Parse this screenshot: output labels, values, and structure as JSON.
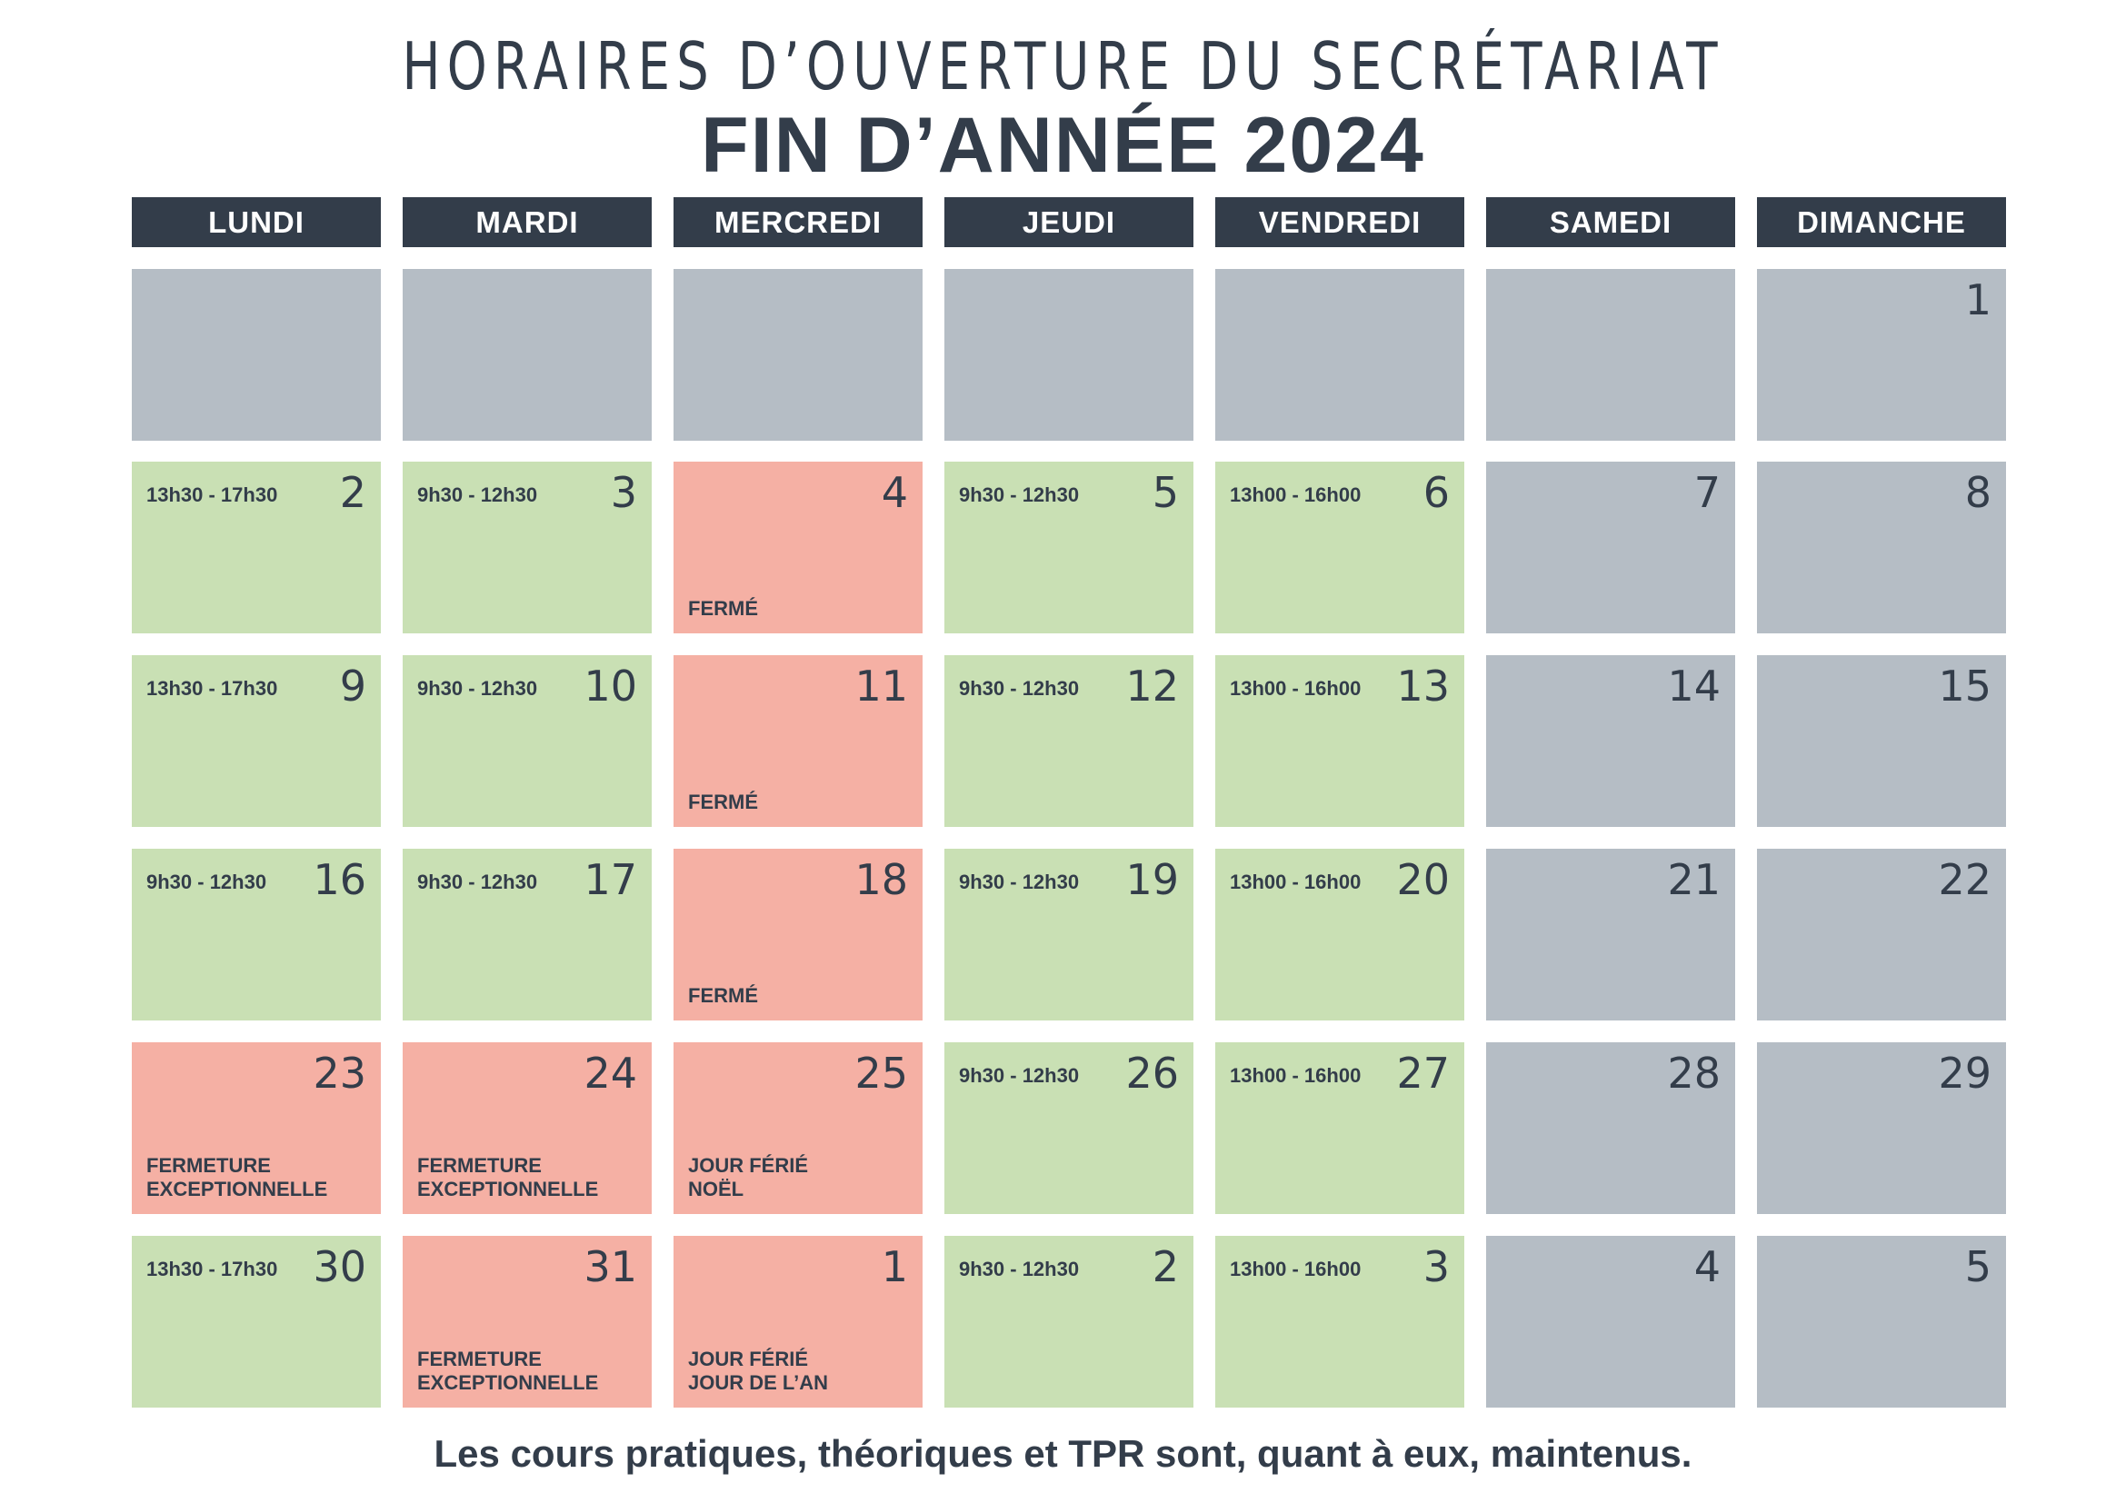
{
  "title": "HORAIRES D’OUVERTURE DU SECRÉTARIAT",
  "subtitle": "FIN D’ANNÉE 2024",
  "weekdays": [
    "LUNDI",
    "MARDI",
    "MERCREDI",
    "JEUDI",
    "VENDREDI",
    "SAMEDI",
    "DIMANCHE"
  ],
  "status_colors": {
    "open": "#c9e0b4",
    "closed": "#f5b0a4",
    "none": "#b5bdc5"
  },
  "weeks": [
    [
      {
        "day": "",
        "status": "none",
        "hours": "",
        "note": []
      },
      {
        "day": "",
        "status": "none",
        "hours": "",
        "note": []
      },
      {
        "day": "",
        "status": "none",
        "hours": "",
        "note": []
      },
      {
        "day": "",
        "status": "none",
        "hours": "",
        "note": []
      },
      {
        "day": "",
        "status": "none",
        "hours": "",
        "note": []
      },
      {
        "day": "",
        "status": "none",
        "hours": "",
        "note": []
      },
      {
        "day": "1",
        "status": "none",
        "hours": "",
        "note": []
      }
    ],
    [
      {
        "day": "2",
        "status": "open",
        "hours": "13h30 - 17h30",
        "note": []
      },
      {
        "day": "3",
        "status": "open",
        "hours": "9h30 - 12h30",
        "note": []
      },
      {
        "day": "4",
        "status": "closed",
        "hours": "",
        "note": [
          "FERMÉ"
        ]
      },
      {
        "day": "5",
        "status": "open",
        "hours": "9h30 - 12h30",
        "note": []
      },
      {
        "day": "6",
        "status": "open",
        "hours": "13h00 - 16h00",
        "note": []
      },
      {
        "day": "7",
        "status": "none",
        "hours": "",
        "note": []
      },
      {
        "day": "8",
        "status": "none",
        "hours": "",
        "note": []
      }
    ],
    [
      {
        "day": "9",
        "status": "open",
        "hours": "13h30 - 17h30",
        "note": []
      },
      {
        "day": "10",
        "status": "open",
        "hours": "9h30 - 12h30",
        "note": []
      },
      {
        "day": "11",
        "status": "closed",
        "hours": "",
        "note": [
          "FERMÉ"
        ]
      },
      {
        "day": "12",
        "status": "open",
        "hours": "9h30 - 12h30",
        "note": []
      },
      {
        "day": "13",
        "status": "open",
        "hours": "13h00 - 16h00",
        "note": []
      },
      {
        "day": "14",
        "status": "none",
        "hours": "",
        "note": []
      },
      {
        "day": "15",
        "status": "none",
        "hours": "",
        "note": []
      }
    ],
    [
      {
        "day": "16",
        "status": "open",
        "hours": "9h30 - 12h30",
        "note": []
      },
      {
        "day": "17",
        "status": "open",
        "hours": "9h30 - 12h30",
        "note": []
      },
      {
        "day": "18",
        "status": "closed",
        "hours": "",
        "note": [
          "FERMÉ"
        ]
      },
      {
        "day": "19",
        "status": "open",
        "hours": "9h30 - 12h30",
        "note": []
      },
      {
        "day": "20",
        "status": "open",
        "hours": "13h00 - 16h00",
        "note": []
      },
      {
        "day": "21",
        "status": "none",
        "hours": "",
        "note": []
      },
      {
        "day": "22",
        "status": "none",
        "hours": "",
        "note": []
      }
    ],
    [
      {
        "day": "23",
        "status": "closed",
        "hours": "",
        "note": [
          "FERMETURE",
          "EXCEPTIONNELLE"
        ]
      },
      {
        "day": "24",
        "status": "closed",
        "hours": "",
        "note": [
          "FERMETURE",
          "EXCEPTIONNELLE"
        ]
      },
      {
        "day": "25",
        "status": "closed",
        "hours": "",
        "note": [
          "JOUR FÉRIÉ",
          "NOËL"
        ]
      },
      {
        "day": "26",
        "status": "open",
        "hours": "9h30 - 12h30",
        "note": []
      },
      {
        "day": "27",
        "status": "open",
        "hours": "13h00 - 16h00",
        "note": []
      },
      {
        "day": "28",
        "status": "none",
        "hours": "",
        "note": []
      },
      {
        "day": "29",
        "status": "none",
        "hours": "",
        "note": []
      }
    ],
    [
      {
        "day": "30",
        "status": "open",
        "hours": "13h30 - 17h30",
        "note": []
      },
      {
        "day": "31",
        "status": "closed",
        "hours": "",
        "note": [
          "FERMETURE",
          "EXCEPTIONNELLE"
        ]
      },
      {
        "day": "1",
        "status": "closed",
        "hours": "",
        "note": [
          "JOUR FÉRIÉ",
          "JOUR DE L’AN"
        ]
      },
      {
        "day": "2",
        "status": "open",
        "hours": "9h30 - 12h30",
        "note": []
      },
      {
        "day": "3",
        "status": "open",
        "hours": "13h00 - 16h00",
        "note": []
      },
      {
        "day": "4",
        "status": "none",
        "hours": "",
        "note": []
      },
      {
        "day": "5",
        "status": "none",
        "hours": "",
        "note": []
      }
    ]
  ],
  "footer": "Les cours pratiques, théoriques et TPR sont, quant à eux, maintenus."
}
